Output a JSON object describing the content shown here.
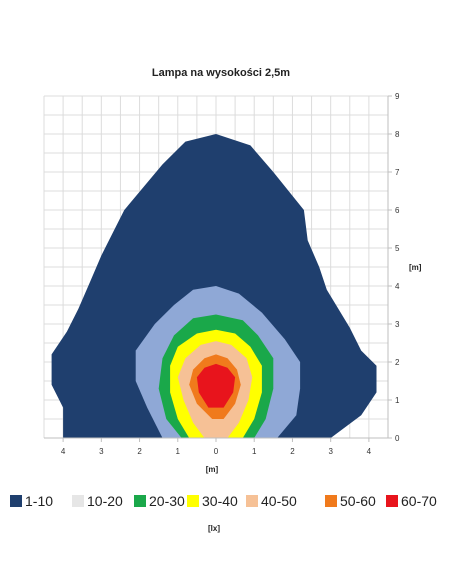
{
  "chart_data": {
    "type": "contour",
    "title": "Lampa na wysokości 2,5m",
    "xlabel": "[m]",
    "ylabel": "[m]",
    "x_ticks": [
      "4",
      "3",
      "2",
      "1",
      "0",
      "1",
      "2",
      "3",
      "4"
    ],
    "y_ticks": [
      "0",
      "1",
      "2",
      "3",
      "4",
      "5",
      "6",
      "7",
      "8",
      "9"
    ],
    "xlim": [
      -4.5,
      4.5
    ],
    "ylim": [
      0,
      9
    ],
    "grid": true,
    "legend_position": "bottom",
    "unit_label": "[lx]",
    "levels": [
      {
        "label": "1-10",
        "color": "#1f3f6e"
      },
      {
        "label": "10-20",
        "color": "#e6e6e6"
      },
      {
        "label": "20-30",
        "color": "#1aa84a"
      },
      {
        "label": "30-40",
        "color": "#ffff00"
      },
      {
        "label": "40-50",
        "color": "#f6c196"
      },
      {
        "label": "50-60",
        "color": "#f07a1c"
      },
      {
        "label": "60-70",
        "color": "#e8141c"
      }
    ],
    "contours": [
      {
        "color": "#1f3f6e",
        "points": [
          [
            -4.0,
            0
          ],
          [
            3.0,
            0
          ],
          [
            3.8,
            0.6
          ],
          [
            4.2,
            1.2
          ],
          [
            4.2,
            1.9
          ],
          [
            3.8,
            2.3
          ],
          [
            3.5,
            2.9
          ],
          [
            3.2,
            3.4
          ],
          [
            2.9,
            3.9
          ],
          [
            2.7,
            4.5
          ],
          [
            2.4,
            5.2
          ],
          [
            2.3,
            6.0
          ],
          [
            1.5,
            7.0
          ],
          [
            0.9,
            7.7
          ],
          [
            0,
            8.0
          ],
          [
            -0.8,
            7.8
          ],
          [
            -1.4,
            7.2
          ],
          [
            -2.4,
            6.0
          ],
          [
            -2.7,
            5.4
          ],
          [
            -3.0,
            4.8
          ],
          [
            -3.3,
            4.1
          ],
          [
            -3.6,
            3.4
          ],
          [
            -3.9,
            2.8
          ],
          [
            -4.3,
            2.2
          ],
          [
            -4.3,
            1.4
          ],
          [
            -4.0,
            0.8
          ]
        ]
      },
      {
        "color": "#8fa8d6",
        "points": [
          [
            -1.4,
            0
          ],
          [
            1.6,
            0
          ],
          [
            2.1,
            0.6
          ],
          [
            2.2,
            1.3
          ],
          [
            2.2,
            2.0
          ],
          [
            1.8,
            2.6
          ],
          [
            1.2,
            3.3
          ],
          [
            0.6,
            3.8
          ],
          [
            0,
            4.0
          ],
          [
            -0.6,
            3.9
          ],
          [
            -1.1,
            3.5
          ],
          [
            -1.6,
            3.0
          ],
          [
            -2.1,
            2.3
          ],
          [
            -2.1,
            1.5
          ],
          [
            -1.8,
            0.8
          ]
        ]
      },
      {
        "color": "#1aa84a",
        "points": [
          [
            -0.9,
            0
          ],
          [
            1.0,
            0
          ],
          [
            1.3,
            0.5
          ],
          [
            1.5,
            1.3
          ],
          [
            1.5,
            2.1
          ],
          [
            1.1,
            2.7
          ],
          [
            0.7,
            3.1
          ],
          [
            0,
            3.25
          ],
          [
            -0.6,
            3.15
          ],
          [
            -1.1,
            2.7
          ],
          [
            -1.4,
            2.1
          ],
          [
            -1.5,
            1.3
          ],
          [
            -1.3,
            0.5
          ]
        ]
      },
      {
        "color": "#ffff00",
        "points": [
          [
            -0.7,
            0
          ],
          [
            0.7,
            0
          ],
          [
            1.0,
            0.5
          ],
          [
            1.2,
            1.2
          ],
          [
            1.2,
            1.9
          ],
          [
            0.9,
            2.4
          ],
          [
            0.5,
            2.75
          ],
          [
            0,
            2.85
          ],
          [
            -0.5,
            2.75
          ],
          [
            -1.0,
            2.4
          ],
          [
            -1.2,
            1.9
          ],
          [
            -1.2,
            1.2
          ],
          [
            -1.0,
            0.5
          ]
        ]
      },
      {
        "color": "#f6c196",
        "points": [
          [
            -0.3,
            0
          ],
          [
            0.3,
            0
          ],
          [
            0.6,
            0.4
          ],
          [
            0.85,
            1.0
          ],
          [
            0.95,
            1.6
          ],
          [
            0.8,
            2.1
          ],
          [
            0.4,
            2.45
          ],
          [
            0,
            2.55
          ],
          [
            -0.4,
            2.45
          ],
          [
            -0.8,
            2.1
          ],
          [
            -1.0,
            1.6
          ],
          [
            -0.85,
            1.0
          ],
          [
            -0.6,
            0.4
          ]
        ]
      },
      {
        "color": "#f07a1c",
        "points": [
          [
            -0.1,
            0.5
          ],
          [
            0.2,
            0.5
          ],
          [
            0.5,
            0.9
          ],
          [
            0.65,
            1.4
          ],
          [
            0.55,
            1.8
          ],
          [
            0.3,
            2.1
          ],
          [
            0,
            2.2
          ],
          [
            -0.3,
            2.1
          ],
          [
            -0.6,
            1.8
          ],
          [
            -0.7,
            1.4
          ],
          [
            -0.5,
            0.9
          ]
        ]
      },
      {
        "color": "#e8141c",
        "points": [
          [
            -0.2,
            0.8
          ],
          [
            0.2,
            0.8
          ],
          [
            0.45,
            1.2
          ],
          [
            0.5,
            1.6
          ],
          [
            0.3,
            1.85
          ],
          [
            0,
            1.95
          ],
          [
            -0.3,
            1.85
          ],
          [
            -0.5,
            1.6
          ],
          [
            -0.45,
            1.2
          ]
        ]
      }
    ]
  }
}
